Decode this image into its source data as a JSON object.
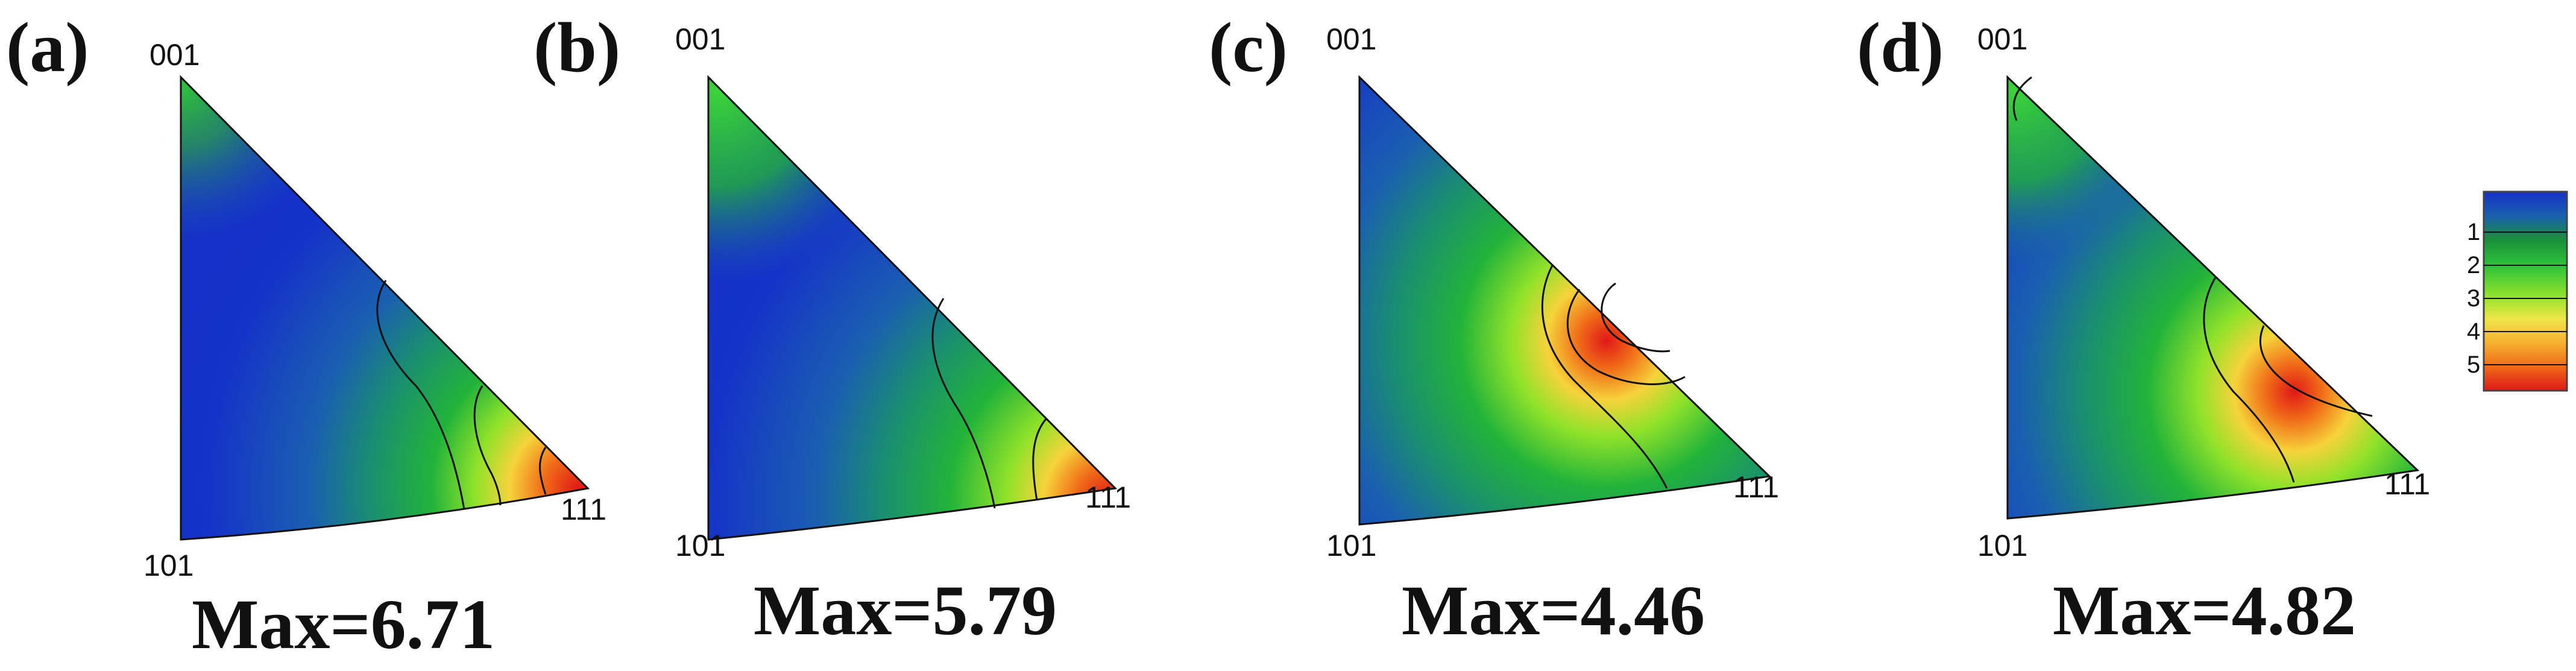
{
  "panels": [
    {
      "letter": "(a)",
      "poles": {
        "top": "001",
        "bottom": "101",
        "right": "111"
      },
      "max_label": "Max=6.71",
      "max_value": 6.71
    },
    {
      "letter": "(b)",
      "poles": {
        "top": "001",
        "bottom": "101",
        "right": "111"
      },
      "max_label": "Max=5.79",
      "max_value": 5.79
    },
    {
      "letter": "(c)",
      "poles": {
        "top": "001",
        "bottom": "101",
        "right": "111"
      },
      "max_label": "Max=4.46",
      "max_value": 4.46
    },
    {
      "letter": "(d)",
      "poles": {
        "top": "001",
        "bottom": "101",
        "right": "111"
      },
      "max_label": "Max=4.82",
      "max_value": 4.82
    }
  ],
  "legend": {
    "ticks": [
      "1",
      "2",
      "3",
      "4",
      "5"
    ],
    "colors": [
      "#1f3fbf",
      "#1a8f3a",
      "#5fd62a",
      "#f0e64a",
      "#f07a1a",
      "#e8201a"
    ]
  }
}
